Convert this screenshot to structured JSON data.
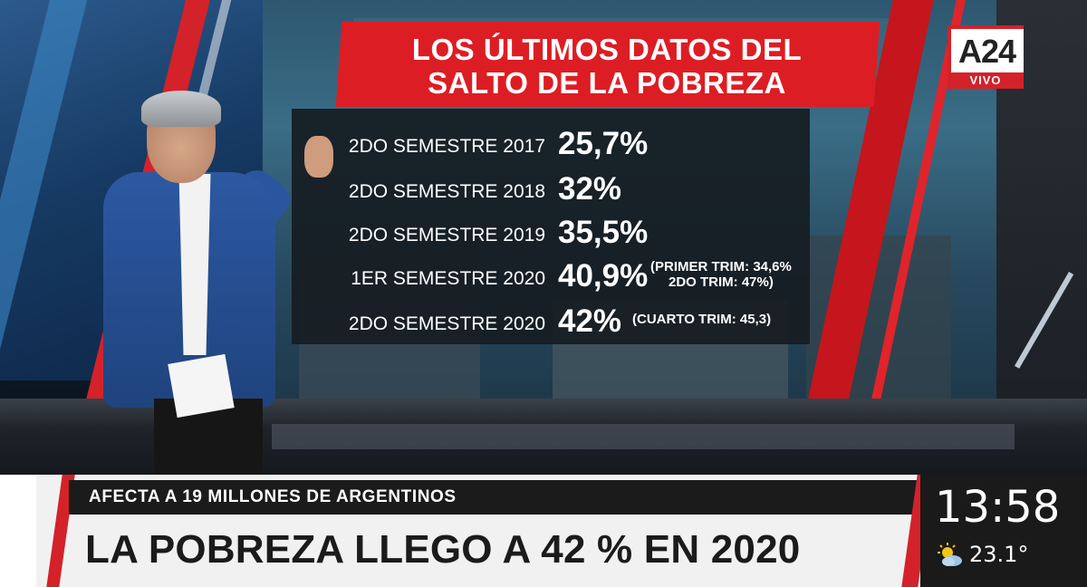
{
  "channel": {
    "logo_text": "A24",
    "live_label": "VIVO",
    "brand_color": "#d3222a"
  },
  "panel": {
    "title_line1": "LOS ÚLTIMOS DATOS DEL",
    "title_line2": "SALTO DE LA POBREZA",
    "rows": [
      {
        "label": "2DO SEMESTRE 2017",
        "value": "25,7%",
        "note_line1": "",
        "note_line2": ""
      },
      {
        "label": "2DO SEMESTRE 2018",
        "value": "32%",
        "note_line1": "",
        "note_line2": ""
      },
      {
        "label": "2DO SEMESTRE 2019",
        "value": "35,5%",
        "note_line1": "",
        "note_line2": ""
      },
      {
        "label": "1ER SEMESTRE 2020",
        "value": "40,9%",
        "note_line1": "(PRIMER TRIM: 34,6%",
        "note_line2": "2DO TRIM: 47%)"
      },
      {
        "label": "2DO SEMESTRE 2020",
        "value": "42%",
        "note_line1": "(CUARTO TRIM: 45,3)",
        "note_line2": ""
      }
    ]
  },
  "lower_third": {
    "kicker": "AFECTA A 19 MILLONES DE ARGENTINOS",
    "headline": "LA POBREZA LLEGO A 42 % EN 2020"
  },
  "status": {
    "time": "13:58",
    "temperature": "23.1°",
    "weather_icon": "sun-cloud-icon"
  }
}
